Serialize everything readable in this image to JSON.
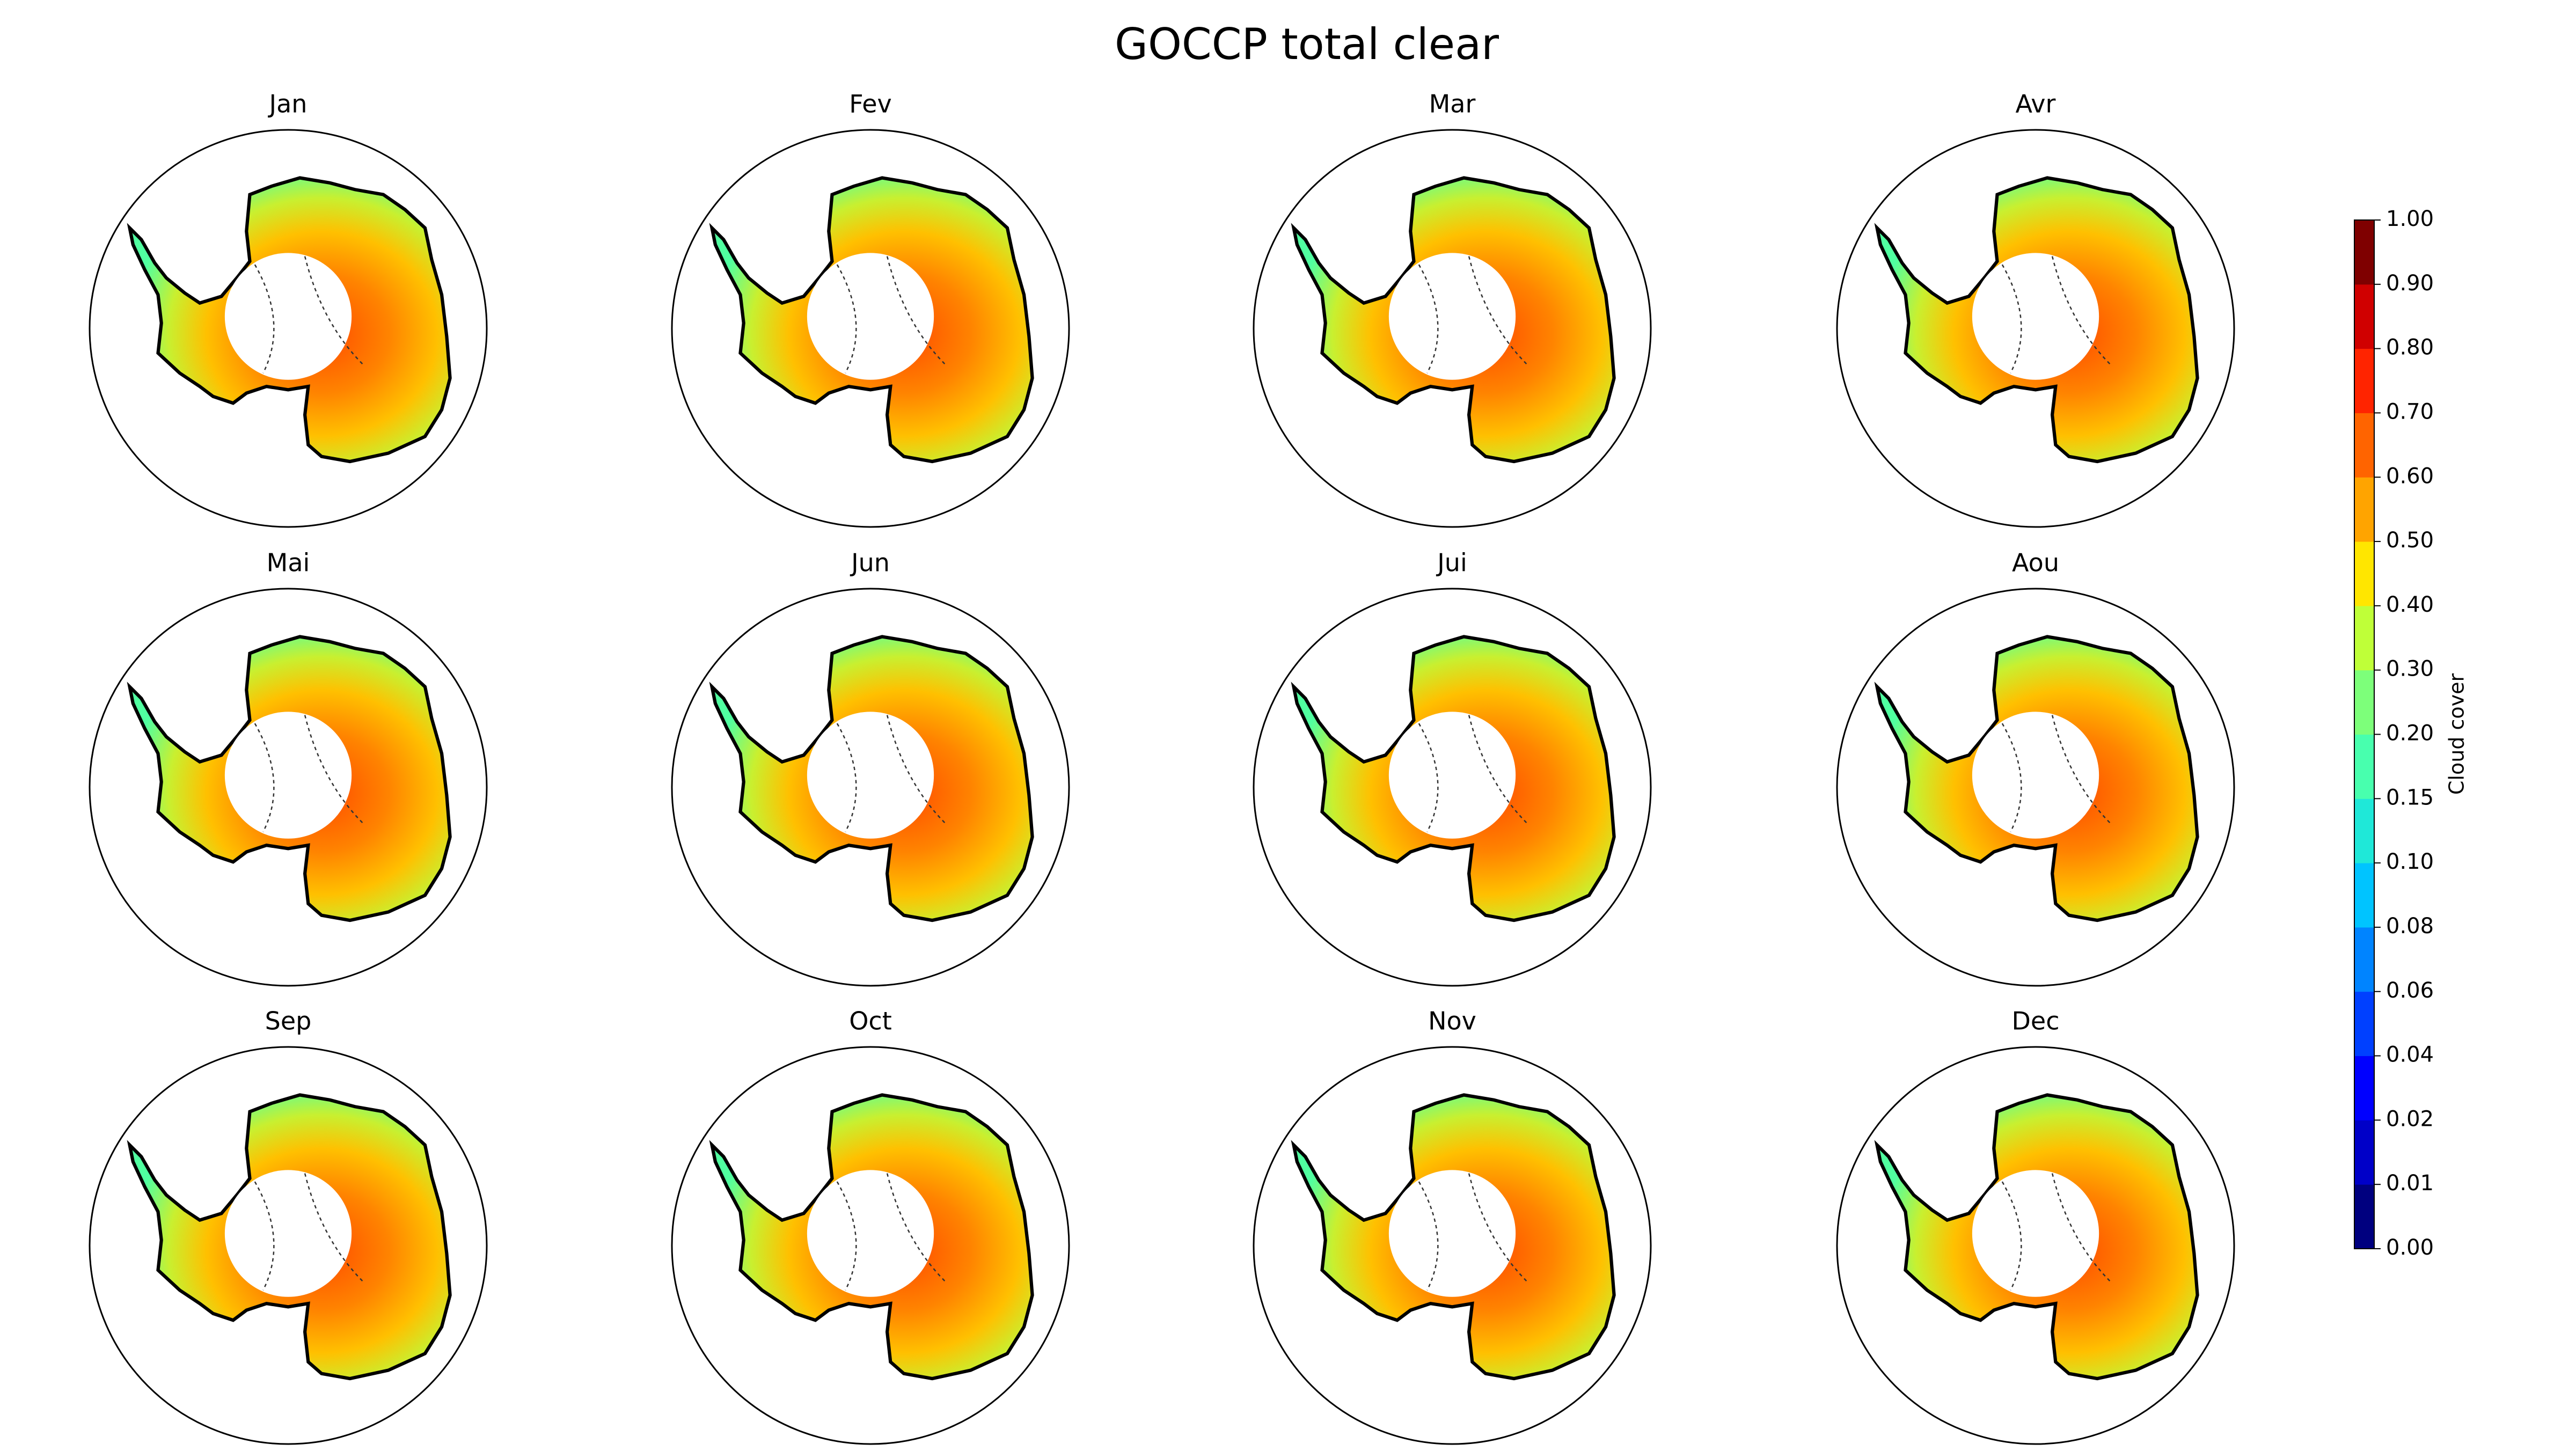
{
  "chart_data": {
    "type": "map",
    "title": "GOCCP total clear",
    "panels": [
      "Jan",
      "Fev",
      "Mar",
      "Avr",
      "Mai",
      "Jun",
      "Jui",
      "Aou",
      "Sep",
      "Oct",
      "Nov",
      "Dec"
    ],
    "colorbar": {
      "label": "Cloud cover",
      "norm": "boundary",
      "ticks": [
        {
          "value": 0,
          "label": "0.00"
        },
        {
          "value": 0.01,
          "label": "0.01"
        },
        {
          "value": 0.02,
          "label": "0.02"
        },
        {
          "value": 0.04,
          "label": "0.04"
        },
        {
          "value": 0.06,
          "label": "0.06"
        },
        {
          "value": 0.08,
          "label": "0.08"
        },
        {
          "value": 0.1,
          "label": "0.10"
        },
        {
          "value": 0.15,
          "label": "0.15"
        },
        {
          "value": 0.2,
          "label": "0.20"
        },
        {
          "value": 0.3,
          "label": "0.30"
        },
        {
          "value": 0.4,
          "label": "0.40"
        },
        {
          "value": 0.5,
          "label": "0.50"
        },
        {
          "value": 0.6,
          "label": "0.60"
        },
        {
          "value": 0.7,
          "label": "0.70"
        },
        {
          "value": 0.8,
          "label": "0.80"
        },
        {
          "value": 0.9,
          "label": "0.90"
        },
        {
          "value": 1,
          "label": "1.00"
        }
      ],
      "colors": [
        "#00007f",
        "#0000c8",
        "#0000ff",
        "#0040ff",
        "#0084ff",
        "#00c4ff",
        "#1fe8d8",
        "#48ffae",
        "#7dff7a",
        "#bfff38",
        "#ffe600",
        "#ffa400",
        "#ff6400",
        "#ff2400",
        "#d00000",
        "#7f0000"
      ]
    }
  }
}
